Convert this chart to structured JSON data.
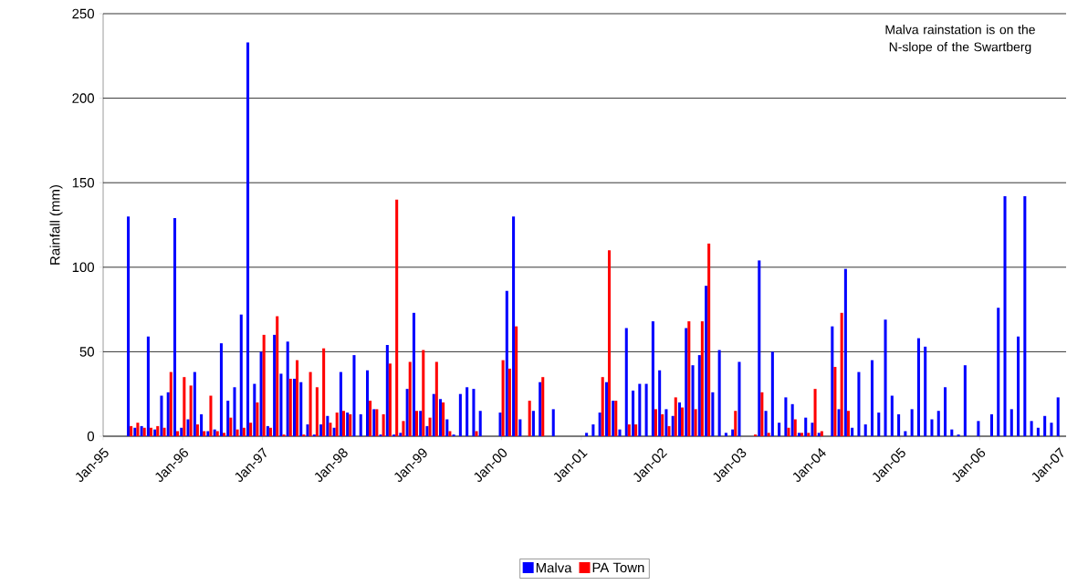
{
  "chart_data": {
    "type": "bar",
    "ylabel": "Rainfall (mm)",
    "annotations": [
      "Malva rainstation is on the N-slope of the Swartberg"
    ],
    "x": [
      "1995-05",
      "1995-06",
      "1995-07",
      "1995-08",
      "1995-09",
      "1995-10",
      "1995-11",
      "1995-12",
      "1996-01",
      "1996-02",
      "1996-03",
      "1996-04",
      "1996-05",
      "1996-06",
      "1996-07",
      "1996-08",
      "1996-09",
      "1996-10",
      "1996-11",
      "1996-12",
      "1997-01",
      "1997-02",
      "1997-03",
      "1997-04",
      "1997-05",
      "1997-06",
      "1997-07",
      "1997-08",
      "1997-09",
      "1997-10",
      "1997-11",
      "1997-12",
      "1998-01",
      "1998-02",
      "1998-03",
      "1998-04",
      "1998-05",
      "1998-06",
      "1998-07",
      "1998-08",
      "1998-09",
      "1998-10",
      "1998-11",
      "1998-12",
      "1999-01",
      "1999-02",
      "1999-03",
      "1999-04",
      "1999-05",
      "1999-06",
      "1999-07",
      "1999-08",
      "1999-09",
      "1999-10",
      "1999-11",
      "1999-12",
      "2000-01",
      "2000-02",
      "2000-03",
      "2000-04",
      "2000-05",
      "2000-06",
      "2000-07",
      "2000-08",
      "2000-09",
      "2000-10",
      "2000-11",
      "2000-12",
      "2001-01",
      "2001-02",
      "2001-03",
      "2001-04",
      "2001-05",
      "2001-06",
      "2001-07",
      "2001-08",
      "2001-09",
      "2001-10",
      "2001-11",
      "2001-12",
      "2002-01",
      "2002-02",
      "2002-03",
      "2002-04",
      "2002-05",
      "2002-06",
      "2002-07",
      "2002-08",
      "2002-09",
      "2002-10",
      "2002-11",
      "2002-12",
      "2003-01",
      "2003-02",
      "2003-03",
      "2003-04",
      "2003-05",
      "2003-06",
      "2003-07",
      "2003-08",
      "2003-09",
      "2003-10",
      "2003-11",
      "2003-12",
      "2004-01",
      "2004-02",
      "2004-03",
      "2004-04",
      "2004-05",
      "2004-06",
      "2004-07",
      "2004-08",
      "2004-09",
      "2004-10",
      "2004-11",
      "2004-12",
      "2005-01",
      "2005-02",
      "2005-03",
      "2005-04",
      "2005-05",
      "2005-06",
      "2005-07",
      "2005-08",
      "2005-09",
      "2005-10",
      "2005-11",
      "2005-12",
      "2006-01",
      "2006-02",
      "2006-03",
      "2006-04",
      "2006-05",
      "2006-06",
      "2006-07",
      "2006-08",
      "2006-09",
      "2006-10",
      "2006-11",
      "2006-12",
      "2007-01"
    ],
    "series": [
      {
        "name": "Malva",
        "color": "#0000ff",
        "values": [
          130,
          5,
          6,
          59,
          4,
          24,
          26,
          129,
          5,
          10,
          38,
          13,
          3,
          4,
          55,
          21,
          29,
          72,
          233,
          31,
          50,
          6,
          60,
          37,
          56,
          34,
          32,
          7,
          1,
          7,
          12,
          5,
          38,
          14,
          48,
          13,
          39,
          16,
          1,
          54,
          1,
          2,
          28,
          73,
          15,
          6,
          25,
          22,
          10,
          1,
          25,
          29,
          28,
          15,
          null,
          null,
          14,
          86,
          130,
          10,
          null,
          15,
          32,
          null,
          16,
          null,
          null,
          null,
          null,
          2,
          7,
          14,
          32,
          21,
          4,
          64,
          27,
          31,
          31,
          68,
          39,
          16,
          12,
          20,
          64,
          42,
          48,
          89,
          26,
          51,
          2,
          4,
          44,
          null,
          null,
          104,
          15,
          50,
          8,
          23,
          19,
          2,
          11,
          8,
          2,
          null,
          65,
          16,
          99,
          5,
          38,
          7,
          45,
          14,
          69,
          24,
          13,
          3,
          16,
          58,
          53,
          10,
          15,
          29,
          4,
          1,
          42,
          null,
          9,
          null,
          13,
          76,
          142,
          16,
          59,
          142,
          9,
          5,
          12,
          8,
          23
        ]
      },
      {
        "name": "PA Town",
        "color": "#ff0000",
        "values": [
          6,
          8,
          5,
          5,
          6,
          5,
          38,
          3,
          35,
          30,
          7,
          3,
          24,
          3,
          2,
          11,
          4,
          5,
          8,
          20,
          60,
          5,
          71,
          1,
          34,
          45,
          1,
          38,
          29,
          52,
          8,
          14,
          15,
          13,
          null,
          null,
          21,
          16,
          13,
          43,
          140,
          9,
          44,
          15,
          51,
          11,
          44,
          20,
          3,
          null,
          null,
          null,
          3,
          null,
          null,
          null,
          45,
          40,
          65,
          null,
          21,
          null,
          35,
          null,
          null,
          null,
          null,
          null,
          null,
          null,
          null,
          35,
          110,
          21,
          null,
          7,
          7,
          null,
          null,
          16,
          13,
          6,
          23,
          17,
          68,
          16,
          68,
          114,
          null,
          null,
          null,
          15,
          null,
          null,
          1,
          26,
          2,
          null,
          null,
          5,
          10,
          2,
          2,
          28,
          3,
          null,
          41,
          73,
          15,
          null,
          null,
          null,
          null,
          null,
          null,
          null,
          null,
          null,
          null,
          null,
          null,
          null,
          null,
          null,
          null,
          null,
          null,
          null,
          null,
          null,
          null,
          null,
          null,
          null,
          null,
          null,
          null,
          null,
          null,
          null,
          null
        ]
      }
    ],
    "xlim": [
      "1995-01",
      "2007-02"
    ],
    "xticks": [
      {
        "value": "1995-01",
        "label": "Jan-95"
      },
      {
        "value": "1996-01",
        "label": "Jan-96"
      },
      {
        "value": "1997-01",
        "label": "Jan-97"
      },
      {
        "value": "1998-01",
        "label": "Jan-98"
      },
      {
        "value": "1999-01",
        "label": "Jan-99"
      },
      {
        "value": "2000-01",
        "label": "Jan-00"
      },
      {
        "value": "2001-01",
        "label": "Jan-01"
      },
      {
        "value": "2002-01",
        "label": "Jan-02"
      },
      {
        "value": "2003-01",
        "label": "Jan-03"
      },
      {
        "value": "2004-01",
        "label": "Jan-04"
      },
      {
        "value": "2005-01",
        "label": "Jan-05"
      },
      {
        "value": "2006-01",
        "label": "Jan-06"
      },
      {
        "value": "2007-01",
        "label": "Jan-07"
      }
    ],
    "ylim": [
      0,
      250
    ],
    "yticks": [
      0,
      50,
      100,
      150,
      200,
      250
    ],
    "grid": "y",
    "legend": "bottom"
  }
}
